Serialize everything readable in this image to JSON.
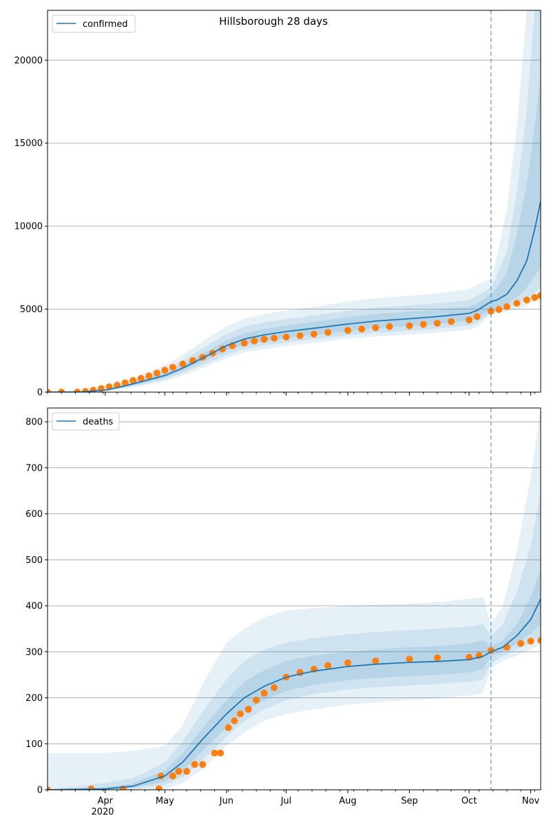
{
  "chart_data": [
    {
      "type": "line",
      "title": "Hillsborough 28 days",
      "legend": {
        "label": "confirmed",
        "placement": "top-left"
      },
      "xlim": [
        "2020-03-03",
        "2020-11-06"
      ],
      "ylim": [
        0,
        23000
      ],
      "yticks": [
        0,
        5000,
        10000,
        15000,
        20000
      ],
      "ytick_labels": [
        "0",
        "5000",
        "10000",
        "15000",
        "20000"
      ],
      "grid": "y",
      "forecast_start": "2020-10-12",
      "model_median": {
        "x": [
          "2020-03-03",
          "2020-03-20",
          "2020-04-01",
          "2020-04-10",
          "2020-04-20",
          "2020-05-01",
          "2020-05-10",
          "2020-05-20",
          "2020-06-01",
          "2020-06-10",
          "2020-06-20",
          "2020-07-01",
          "2020-07-15",
          "2020-08-01",
          "2020-08-15",
          "2020-09-01",
          "2020-09-15",
          "2020-10-01",
          "2020-10-05",
          "2020-10-12",
          "2020-10-15",
          "2020-10-20",
          "2020-10-25",
          "2020-10-30",
          "2020-11-03",
          "2020-11-06"
        ],
        "y": [
          0,
          10,
          120,
          350,
          650,
          1000,
          1450,
          2050,
          2800,
          3200,
          3450,
          3650,
          3850,
          4100,
          4280,
          4420,
          4550,
          4750,
          4920,
          5450,
          5550,
          5900,
          6700,
          7900,
          9800,
          11500
        ]
      },
      "bands": [
        {
          "level": "inner",
          "lower": [
            0,
            5,
            100,
            300,
            550,
            880,
            1300,
            1850,
            2500,
            2850,
            3080,
            3250,
            3450,
            3680,
            3850,
            3980,
            4100,
            4300,
            4450,
            5000,
            5100,
            5300,
            5700,
            6300,
            7000,
            7500
          ],
          "upper": [
            0,
            20,
            150,
            420,
            760,
            1150,
            1650,
            2300,
            3100,
            3550,
            3800,
            4020,
            4230,
            4520,
            4700,
            4850,
            4970,
            5150,
            5350,
            5900,
            6300,
            7200,
            9500,
            12500,
            16000,
            19000
          ]
        },
        {
          "level": "middle",
          "lower": [
            0,
            2,
            80,
            250,
            470,
            760,
            1150,
            1650,
            2250,
            2600,
            2820,
            2990,
            3200,
            3420,
            3580,
            3700,
            3820,
            4020,
            4150,
            4800,
            4900,
            5050,
            5300,
            5600,
            6000,
            6300
          ],
          "upper": [
            0,
            30,
            190,
            500,
            900,
            1330,
            1900,
            2650,
            3500,
            3950,
            4200,
            4400,
            4620,
            4900,
            5080,
            5230,
            5350,
            5550,
            5800,
            6300,
            7000,
            8500,
            12000,
            17000,
            23000,
            23000
          ]
        },
        {
          "level": "outer",
          "lower": [
            0,
            0,
            60,
            200,
            400,
            650,
            1000,
            1450,
            2050,
            2380,
            2600,
            2770,
            2980,
            3200,
            3350,
            3470,
            3580,
            3760,
            3900,
            4700,
            4750,
            4850,
            5000,
            5200,
            5500,
            5800
          ],
          "upper": [
            0,
            50,
            260,
            650,
            1100,
            1600,
            2250,
            3050,
            3950,
            4420,
            4700,
            4900,
            5150,
            5450,
            5650,
            5800,
            5950,
            6200,
            6500,
            6800,
            8200,
            11000,
            16000,
            23000,
            23000,
            23000
          ]
        }
      ],
      "observed": {
        "x": [
          "2020-03-03",
          "2020-03-10",
          "2020-03-18",
          "2020-03-22",
          "2020-03-26",
          "2020-03-30",
          "2020-04-03",
          "2020-04-07",
          "2020-04-11",
          "2020-04-15",
          "2020-04-19",
          "2020-04-23",
          "2020-04-27",
          "2020-05-01",
          "2020-05-05",
          "2020-05-10",
          "2020-05-15",
          "2020-05-20",
          "2020-05-25",
          "2020-05-30",
          "2020-06-04",
          "2020-06-10",
          "2020-06-15",
          "2020-06-20",
          "2020-06-25",
          "2020-07-01",
          "2020-07-08",
          "2020-07-15",
          "2020-07-22",
          "2020-08-01",
          "2020-08-08",
          "2020-08-15",
          "2020-08-22",
          "2020-09-01",
          "2020-09-08",
          "2020-09-15",
          "2020-09-22",
          "2020-10-01",
          "2020-10-05",
          "2020-10-12",
          "2020-10-16",
          "2020-10-20",
          "2020-10-25",
          "2020-10-30",
          "2020-11-03",
          "2020-11-06"
        ],
        "y": [
          0,
          0,
          5,
          40,
          120,
          220,
          320,
          420,
          560,
          700,
          830,
          980,
          1150,
          1320,
          1500,
          1700,
          1900,
          2100,
          2350,
          2600,
          2800,
          2950,
          3080,
          3180,
          3250,
          3320,
          3400,
          3500,
          3600,
          3720,
          3800,
          3880,
          3950,
          4000,
          4080,
          4150,
          4250,
          4350,
          4550,
          4880,
          4980,
          5150,
          5350,
          5550,
          5700,
          5820
        ]
      }
    },
    {
      "type": "line",
      "title": "",
      "legend": {
        "label": "deaths",
        "placement": "top-left"
      },
      "xlim": [
        "2020-03-03",
        "2020-11-06"
      ],
      "xticks": [
        "2020-04-01",
        "2020-05-01",
        "2020-06-01",
        "2020-07-01",
        "2020-08-01",
        "2020-09-01",
        "2020-10-01",
        "2020-11-01"
      ],
      "xtick_labels": [
        "Apr",
        "May",
        "Jun",
        "Jul",
        "Aug",
        "Sep",
        "Oct",
        "Nov"
      ],
      "x_secondary_label": "2020",
      "ylim": [
        0,
        830
      ],
      "yticks": [
        0,
        100,
        200,
        300,
        400,
        500,
        600,
        700,
        800
      ],
      "ytick_labels": [
        "0",
        "100",
        "200",
        "300",
        "400",
        "500",
        "600",
        "700",
        "800"
      ],
      "grid": "y",
      "forecast_start": "2020-10-12",
      "model_median": {
        "x": [
          "2020-03-03",
          "2020-04-01",
          "2020-04-15",
          "2020-05-01",
          "2020-05-10",
          "2020-05-20",
          "2020-06-01",
          "2020-06-10",
          "2020-06-20",
          "2020-07-01",
          "2020-07-15",
          "2020-08-01",
          "2020-08-15",
          "2020-09-01",
          "2020-09-15",
          "2020-10-01",
          "2020-10-08",
          "2020-10-12",
          "2020-10-18",
          "2020-10-25",
          "2020-11-01",
          "2020-11-06"
        ],
        "y": [
          0,
          2,
          8,
          30,
          60,
          110,
          165,
          200,
          225,
          245,
          258,
          268,
          273,
          277,
          279,
          283,
          290,
          300,
          310,
          335,
          370,
          415
        ]
      },
      "bands": [
        {
          "level": "inner",
          "lower": [
            0,
            0,
            4,
            18,
            42,
            85,
            135,
            170,
            195,
            215,
            228,
            238,
            243,
            247,
            250,
            255,
            262,
            290,
            300,
            318,
            340,
            360
          ],
          "upper": [
            0,
            5,
            14,
            42,
            80,
            135,
            195,
            235,
            260,
            280,
            292,
            300,
            305,
            310,
            312,
            318,
            325,
            312,
            325,
            360,
            420,
            480
          ]
        },
        {
          "level": "middle",
          "lower": [
            0,
            0,
            2,
            10,
            28,
            65,
            115,
            150,
            175,
            195,
            208,
            218,
            223,
            227,
            230,
            235,
            240,
            275,
            290,
            305,
            320,
            335
          ],
          "upper": [
            0,
            15,
            25,
            60,
            105,
            170,
            240,
            280,
            305,
            320,
            330,
            338,
            343,
            347,
            350,
            355,
            360,
            335,
            360,
            430,
            530,
            650
          ]
        },
        {
          "level": "outer",
          "lower": [
            0,
            0,
            0,
            2,
            15,
            45,
            95,
            125,
            150,
            165,
            175,
            185,
            190,
            195,
            198,
            205,
            210,
            265,
            280,
            292,
            305,
            315
          ],
          "upper": [
            80,
            80,
            85,
            95,
            140,
            230,
            320,
            350,
            375,
            390,
            395,
            400,
            402,
            405,
            408,
            415,
            420,
            360,
            400,
            520,
            680,
            830
          ]
        }
      ],
      "observed": {
        "x": [
          "2020-03-03",
          "2020-03-25",
          "2020-04-10",
          "2020-04-28",
          "2020-04-29",
          "2020-05-05",
          "2020-05-08",
          "2020-05-12",
          "2020-05-16",
          "2020-05-20",
          "2020-05-26",
          "2020-05-29",
          "2020-06-02",
          "2020-06-05",
          "2020-06-08",
          "2020-06-12",
          "2020-06-16",
          "2020-06-20",
          "2020-06-25",
          "2020-07-01",
          "2020-07-08",
          "2020-07-15",
          "2020-07-22",
          "2020-08-01",
          "2020-08-15",
          "2020-09-01",
          "2020-09-15",
          "2020-10-01",
          "2020-10-06",
          "2020-10-12",
          "2020-10-20",
          "2020-10-27",
          "2020-11-01",
          "2020-11-06"
        ],
        "y": [
          0,
          2,
          2,
          2,
          30,
          30,
          40,
          40,
          55,
          55,
          80,
          80,
          135,
          150,
          165,
          175,
          195,
          210,
          222,
          245,
          255,
          262,
          270,
          276,
          280,
          284,
          287,
          288,
          292,
          303,
          310,
          318,
          323,
          325
        ]
      }
    }
  ]
}
